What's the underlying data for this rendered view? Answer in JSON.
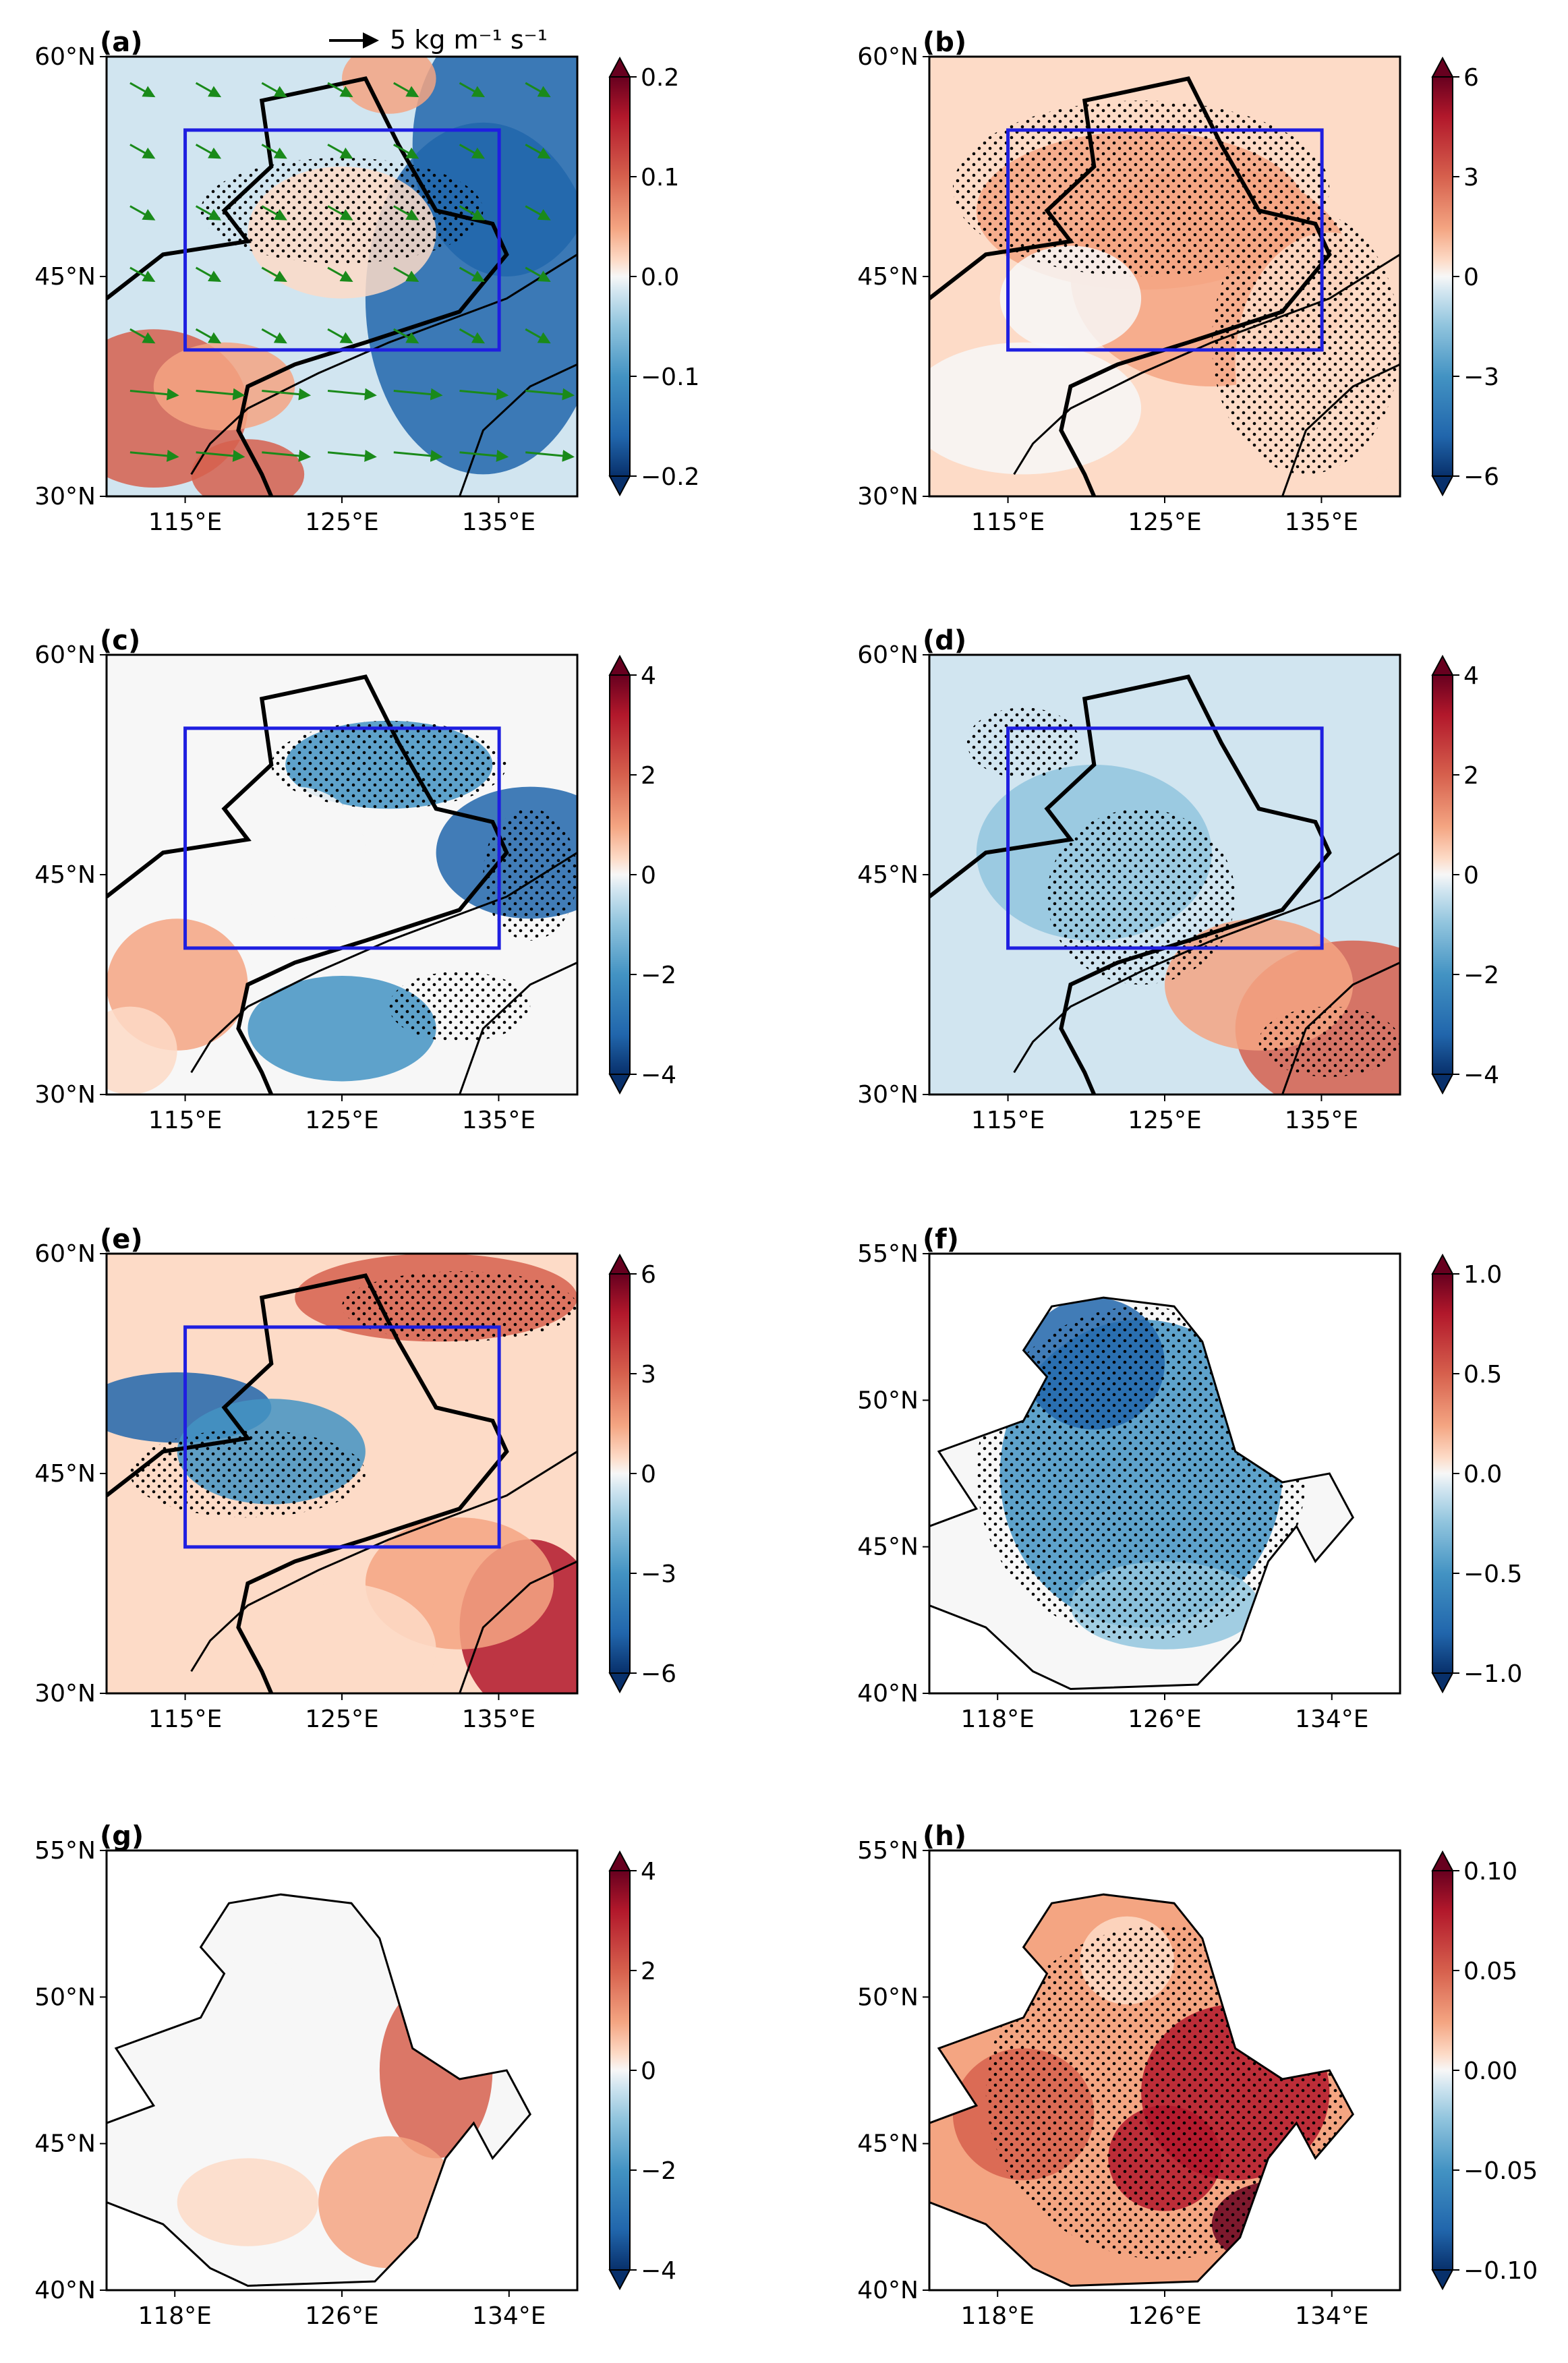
{
  "chart_data": [
    {
      "panel": "(a)",
      "type": "heatmap",
      "lon_ticks": [
        "115°E",
        "125°E",
        "135°E"
      ],
      "lat_ticks": [
        "30°N",
        "45°N",
        "60°N"
      ],
      "colorbar": {
        "range": [
          -0.2,
          0.2
        ],
        "ticks": [
          "0.2",
          "0.1",
          "0.0",
          "−0.1",
          "−0.2"
        ]
      },
      "vector_legend": "5 kg m⁻¹ s⁻¹",
      "box": "115°E–135°E, 40°N–55°N"
    },
    {
      "panel": "(b)",
      "type": "heatmap",
      "lon_ticks": [
        "115°E",
        "125°E",
        "135°E"
      ],
      "lat_ticks": [
        "30°N",
        "45°N",
        "60°N"
      ],
      "colorbar": {
        "range": [
          -6,
          6
        ],
        "ticks": [
          "6",
          "3",
          "0",
          "−3",
          "−6"
        ]
      },
      "box": "115°E–135°E, 40°N–55°N"
    },
    {
      "panel": "(c)",
      "type": "heatmap",
      "lon_ticks": [
        "115°E",
        "125°E",
        "135°E"
      ],
      "lat_ticks": [
        "30°N",
        "45°N",
        "60°N"
      ],
      "colorbar": {
        "range": [
          -4,
          4
        ],
        "ticks": [
          "4",
          "2",
          "0",
          "−2",
          "−4"
        ]
      },
      "box": "115°E–135°E, 40°N–55°N"
    },
    {
      "panel": "(d)",
      "type": "heatmap",
      "lon_ticks": [
        "115°E",
        "125°E",
        "135°E"
      ],
      "lat_ticks": [
        "30°N",
        "45°N",
        "60°N"
      ],
      "colorbar": {
        "range": [
          -4,
          4
        ],
        "ticks": [
          "4",
          "2",
          "0",
          "−2",
          "−4"
        ]
      },
      "box": "115°E–135°E, 40°N–55°N"
    },
    {
      "panel": "(e)",
      "type": "heatmap",
      "lon_ticks": [
        "115°E",
        "125°E",
        "135°E"
      ],
      "lat_ticks": [
        "30°N",
        "45°N",
        "60°N"
      ],
      "colorbar": {
        "range": [
          -6,
          6
        ],
        "ticks": [
          "6",
          "3",
          "0",
          "−3",
          "−6"
        ]
      },
      "box": "115°E–135°E, 40°N–55°N"
    },
    {
      "panel": "(f)",
      "type": "heatmap",
      "lon_ticks": [
        "118°E",
        "126°E",
        "134°E"
      ],
      "lat_ticks": [
        "40°N",
        "45°N",
        "50°N",
        "55°N"
      ],
      "colorbar": {
        "range": [
          -1.0,
          1.0
        ],
        "ticks": [
          "1.0",
          "0.5",
          "0.0",
          "−0.5",
          "−1.0"
        ]
      }
    },
    {
      "panel": "(g)",
      "type": "heatmap",
      "lon_ticks": [
        "118°E",
        "126°E",
        "134°E"
      ],
      "lat_ticks": [
        "40°N",
        "45°N",
        "50°N",
        "55°N"
      ],
      "colorbar": {
        "range": [
          -4,
          4
        ],
        "ticks": [
          "4",
          "2",
          "0",
          "−2",
          "−4"
        ]
      }
    },
    {
      "panel": "(h)",
      "type": "heatmap",
      "lon_ticks": [
        "118°E",
        "126°E",
        "134°E"
      ],
      "lat_ticks": [
        "40°N",
        "45°N",
        "50°N",
        "55°N"
      ],
      "colorbar": {
        "range": [
          -0.1,
          0.1
        ],
        "ticks": [
          "0.10",
          "0.05",
          "0.00",
          "−0.05",
          "−0.10"
        ]
      }
    }
  ],
  "colors": {
    "box": "#1f1fe0",
    "vectors": "#1a8a1a",
    "outline": "#000000",
    "cmap": [
      "#08306b",
      "#2166ac",
      "#4393c3",
      "#92c5de",
      "#d1e5f0",
      "#f7f7f7",
      "#fddbc7",
      "#f4a582",
      "#d6604d",
      "#b2182b",
      "#67001f"
    ]
  }
}
